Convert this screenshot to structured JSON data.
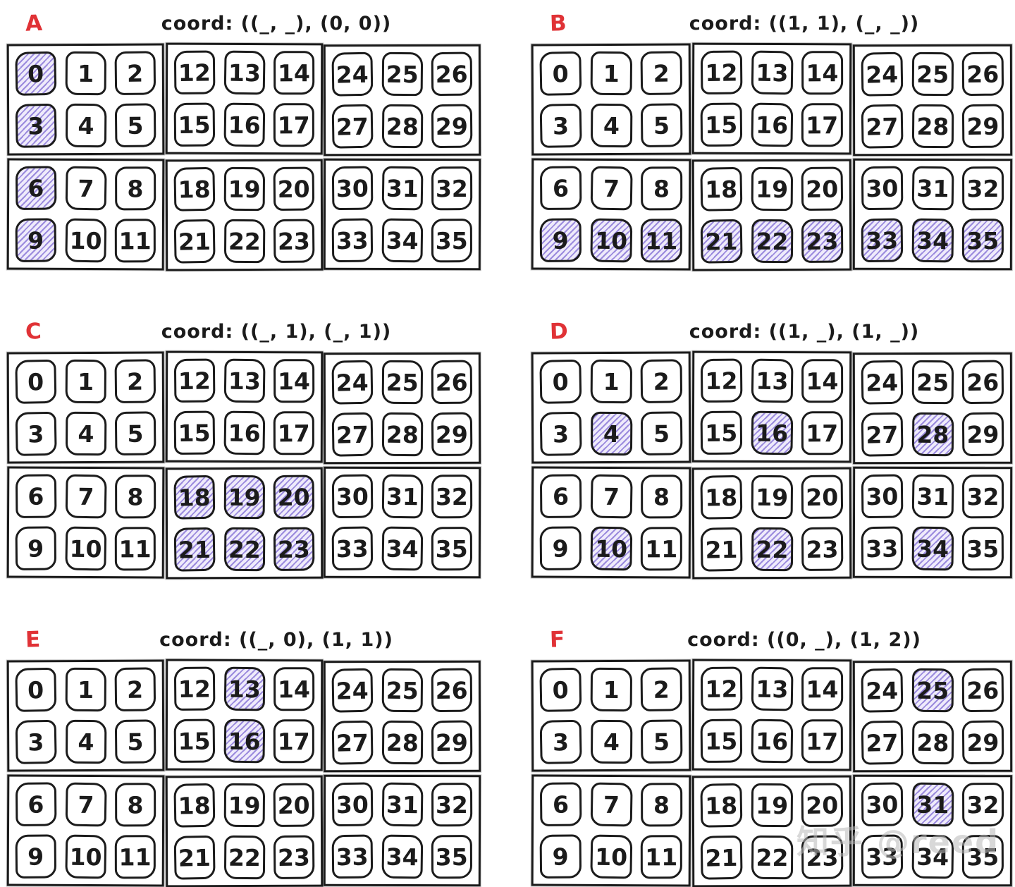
{
  "colors": {
    "ink": "#1b1b1b",
    "label_red": "#e03236",
    "hatch_line": "#8c7ad8",
    "hatch_bg": "#efebfb",
    "watermark_gray": "#b9b9b9"
  },
  "watermark": "知乎 @reed",
  "board_template": {
    "block_rows": 2,
    "block_cols": 3,
    "cell_rows": 2,
    "cell_cols": 3,
    "blocks": [
      {
        "name": "block-0-0",
        "cells": [
          0,
          1,
          2,
          3,
          4,
          5
        ]
      },
      {
        "name": "block-0-1",
        "cells": [
          12,
          13,
          14,
          15,
          16,
          17
        ]
      },
      {
        "name": "block-0-2",
        "cells": [
          24,
          25,
          26,
          27,
          28,
          29
        ]
      },
      {
        "name": "block-1-0",
        "cells": [
          6,
          7,
          8,
          9,
          10,
          11
        ]
      },
      {
        "name": "block-1-1",
        "cells": [
          18,
          19,
          20,
          21,
          22,
          23
        ]
      },
      {
        "name": "block-1-2",
        "cells": [
          30,
          31,
          32,
          33,
          34,
          35
        ]
      }
    ]
  },
  "panels": [
    {
      "label": "A",
      "title": "coord: ((_, _), (0, 0))",
      "highlighted": [
        0,
        3,
        6,
        9
      ]
    },
    {
      "label": "B",
      "title": "coord: ((1, 1), (_, _))",
      "highlighted": [
        9,
        10,
        11,
        21,
        22,
        23,
        33,
        34,
        35
      ]
    },
    {
      "label": "C",
      "title": "coord: ((_, 1), (_, 1))",
      "highlighted": [
        18,
        19,
        20,
        21,
        22,
        23
      ]
    },
    {
      "label": "D",
      "title": "coord: ((1, _), (1, _))",
      "highlighted": [
        4,
        16,
        28,
        10,
        22,
        34
      ]
    },
    {
      "label": "E",
      "title": "coord: ((_, 0), (1, 1))",
      "highlighted": [
        13,
        16
      ]
    },
    {
      "label": "F",
      "title": "coord: ((0, _), (1, 2))",
      "highlighted": [
        25,
        31
      ]
    }
  ]
}
